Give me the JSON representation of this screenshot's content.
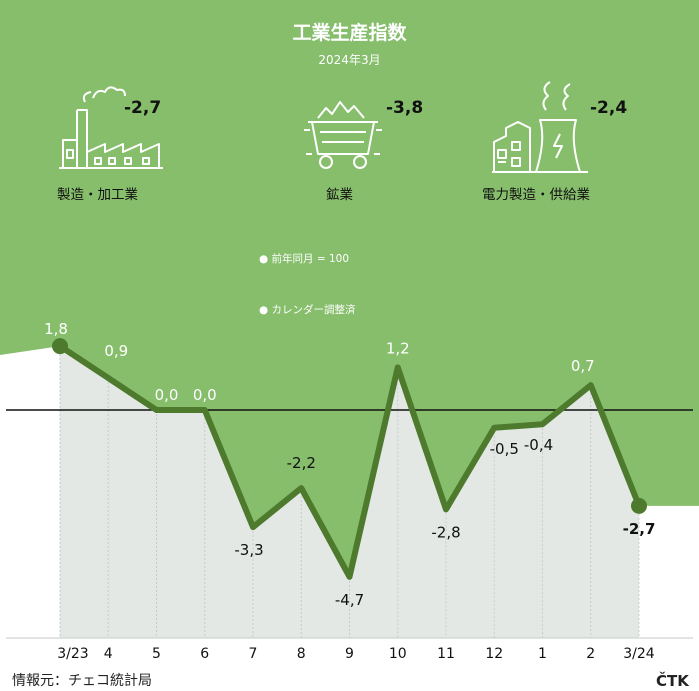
{
  "header": {
    "title": "工業生産指数",
    "subtitle": "2024年3月"
  },
  "sectors": [
    {
      "icon": "factory-icon",
      "value": "-2,7",
      "label": "製造・加工業"
    },
    {
      "icon": "mine-cart-icon",
      "value": "-3,8",
      "label": "鉱業"
    },
    {
      "icon": "power-plant-icon",
      "value": "-2,4",
      "label": "電力製造・供給業"
    }
  ],
  "notes": [
    "前年同月 = 100",
    "カレンダー調整済"
  ],
  "source": "情報元：チェコ統計局",
  "brand": "ČTK",
  "colors": {
    "background": "#86be6c",
    "line": "#4d7a2c",
    "area": "#e3e8e4",
    "gridline": "#c6cbc7"
  },
  "chart_data": {
    "type": "line",
    "categories": [
      "3/23",
      "4",
      "5",
      "6",
      "7",
      "8",
      "9",
      "10",
      "11",
      "12",
      "1",
      "2",
      "3/24"
    ],
    "values": [
      1.8,
      0.9,
      0.0,
      0.0,
      -3.3,
      -2.2,
      -4.7,
      1.2,
      -2.8,
      -0.5,
      -0.4,
      0.7,
      -2.7
    ],
    "value_labels": [
      "1,8",
      "0,9",
      "0,0",
      "0,0",
      "-3,3",
      "-2,2",
      "-4,7",
      "1,2",
      "-2,8",
      "-0,5",
      "-0,4",
      "0,7",
      "-2,7"
    ],
    "title": "",
    "xlabel": "",
    "ylabel": "",
    "baseline": 0,
    "grid": false
  }
}
